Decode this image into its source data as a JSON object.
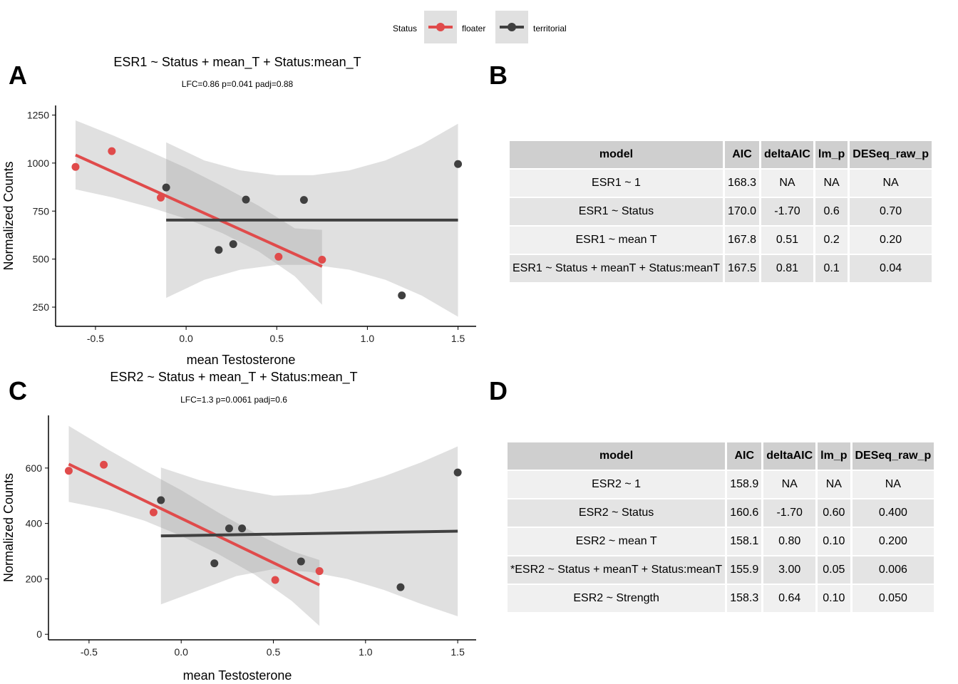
{
  "legend": {
    "title": "Status",
    "items": [
      {
        "label": "floater",
        "color": "#e04b4b"
      },
      {
        "label": "territorial",
        "color": "#404040"
      }
    ]
  },
  "panels": [
    "A",
    "B",
    "C",
    "D"
  ],
  "chart_data": [
    {
      "type": "scatter",
      "title": "ESR1 ~ Status + mean_T + Status:mean_T",
      "subtitle": "LFC=0.86 p=0.041 padj=0.88",
      "xlabel": "mean Testosterone",
      "ylabel": "Normalized Counts",
      "xticks": [
        -0.5,
        0.0,
        0.5,
        1.0,
        1.5
      ],
      "xtick_labels": [
        "-0.5",
        "0.0",
        "0.5",
        "1.0",
        "1.5"
      ],
      "yticks": [
        250,
        500,
        750,
        1000,
        1250
      ],
      "ytick_labels": [
        "250",
        "500",
        "750",
        "1000",
        "1250"
      ],
      "xlim": [
        -0.72,
        1.6
      ],
      "ylim": [
        150,
        1300
      ],
      "series": [
        {
          "name": "floater",
          "color": "#e04b4b",
          "points": [
            [
              -0.61,
              980
            ],
            [
              -0.41,
              1062
            ],
            [
              -0.14,
              820
            ],
            [
              0.51,
              512
            ],
            [
              0.75,
              497
            ]
          ],
          "fit": {
            "x": [
              -0.61,
              0.75
            ],
            "y": [
              1042,
              462
            ]
          },
          "band": {
            "x": [
              -0.61,
              -0.4,
              -0.2,
              0.0,
              0.2,
              0.4,
              0.6,
              0.75
            ],
            "lower": [
              863,
              820,
              770,
              710,
              635,
              540,
              410,
              262
            ],
            "upper": [
              1222,
              1143,
              1060,
              975,
              880,
              778,
              660,
              652
            ]
          }
        },
        {
          "name": "territorial",
          "color": "#404040",
          "points": [
            [
              -0.11,
              873
            ],
            [
              0.18,
              548
            ],
            [
              0.26,
              578
            ],
            [
              0.33,
              810
            ],
            [
              0.65,
              808
            ],
            [
              1.19,
              311
            ],
            [
              1.5,
              995
            ]
          ],
          "fit": {
            "x": [
              -0.11,
              1.5
            ],
            "y": [
              703,
              703
            ]
          },
          "band": {
            "x": [
              -0.11,
              0.1,
              0.3,
              0.5,
              0.7,
              0.9,
              1.1,
              1.3,
              1.5
            ],
            "lower": [
              298,
              392,
              445,
              470,
              470,
              445,
              392,
              310,
              200
            ],
            "upper": [
              1108,
              1014,
              962,
              937,
              937,
              962,
              1014,
              1097,
              1205
            ]
          }
        }
      ],
      "grid": false
    },
    {
      "type": "scatter",
      "title": "ESR2 ~ Status + mean_T + Status:mean_T",
      "subtitle": "LFC=1.3 p=0.0061 padj=0.6",
      "xlabel": "mean Testosterone",
      "ylabel": "Normalized Counts",
      "xticks": [
        -0.5,
        0.0,
        0.5,
        1.0,
        1.5
      ],
      "xtick_labels": [
        "-0.5",
        "0.0",
        "0.5",
        "1.0",
        "1.5"
      ],
      "yticks": [
        0,
        200,
        400,
        600
      ],
      "ytick_labels": [
        "0",
        "200",
        "400",
        "600"
      ],
      "xlim": [
        -0.72,
        1.6
      ],
      "ylim": [
        -20,
        790
      ],
      "series": [
        {
          "name": "floater",
          "color": "#e04b4b",
          "points": [
            [
              -0.61,
              590
            ],
            [
              -0.42,
              612
            ],
            [
              -0.15,
              440
            ],
            [
              0.51,
              196
            ],
            [
              0.75,
              228
            ]
          ],
          "fit": {
            "x": [
              -0.61,
              0.75
            ],
            "y": [
              614,
              178
            ]
          },
          "band": {
            "x": [
              -0.61,
              -0.4,
              -0.2,
              0.0,
              0.2,
              0.4,
              0.6,
              0.75
            ],
            "lower": [
              478,
              450,
              410,
              355,
              290,
              215,
              120,
              30
            ],
            "upper": [
              752,
              668,
              592,
              520,
              440,
              365,
              300,
              268
            ]
          }
        },
        {
          "name": "territorial",
          "color": "#404040",
          "points": [
            [
              -0.11,
              484
            ],
            [
              0.18,
              256
            ],
            [
              0.26,
              382
            ],
            [
              0.33,
              382
            ],
            [
              0.65,
              263
            ],
            [
              1.19,
              170
            ],
            [
              1.5,
              584
            ]
          ],
          "fit": {
            "x": [
              -0.11,
              1.5
            ],
            "y": [
              355,
              372
            ]
          },
          "band": {
            "x": [
              -0.11,
              0.1,
              0.3,
              0.5,
              0.7,
              0.9,
              1.1,
              1.3,
              1.5
            ],
            "lower": [
              108,
              160,
              210,
              235,
              225,
              200,
              160,
              110,
              65
            ],
            "upper": [
              602,
              556,
              525,
              500,
              505,
              530,
              570,
              620,
              678
            ]
          }
        }
      ],
      "grid": false
    }
  ],
  "tables": [
    {
      "columns": [
        "model",
        "AIC",
        "deltaAIC",
        "lm_p",
        "DESeq_raw_p"
      ],
      "rows": [
        [
          "ESR1 ~ 1",
          "168.3",
          "NA",
          "NA",
          "NA"
        ],
        [
          "ESR1 ~ Status",
          "170.0",
          "-1.70",
          "0.6",
          "0.70"
        ],
        [
          "ESR1 ~ mean T",
          "167.8",
          "0.51",
          "0.2",
          "0.20"
        ],
        [
          "ESR1 ~ Status + meanT + Status:meanT",
          "167.5",
          "0.81",
          "0.1",
          "0.04"
        ]
      ]
    },
    {
      "columns": [
        "model",
        "AIC",
        "deltaAIC",
        "lm_p",
        "DESeq_raw_p"
      ],
      "rows": [
        [
          "ESR2 ~ 1",
          "158.9",
          "NA",
          "NA",
          "NA"
        ],
        [
          "ESR2 ~ Status",
          "160.6",
          "-1.70",
          "0.60",
          "0.400"
        ],
        [
          "ESR2 ~ mean T",
          "158.1",
          "0.80",
          "0.10",
          "0.200"
        ],
        [
          "*ESR2 ~ Status + meanT + Status:meanT",
          "155.9",
          "3.00",
          "0.05",
          "0.006"
        ],
        [
          "ESR2 ~ Strength",
          "158.3",
          "0.64",
          "0.10",
          "0.050"
        ]
      ]
    }
  ]
}
